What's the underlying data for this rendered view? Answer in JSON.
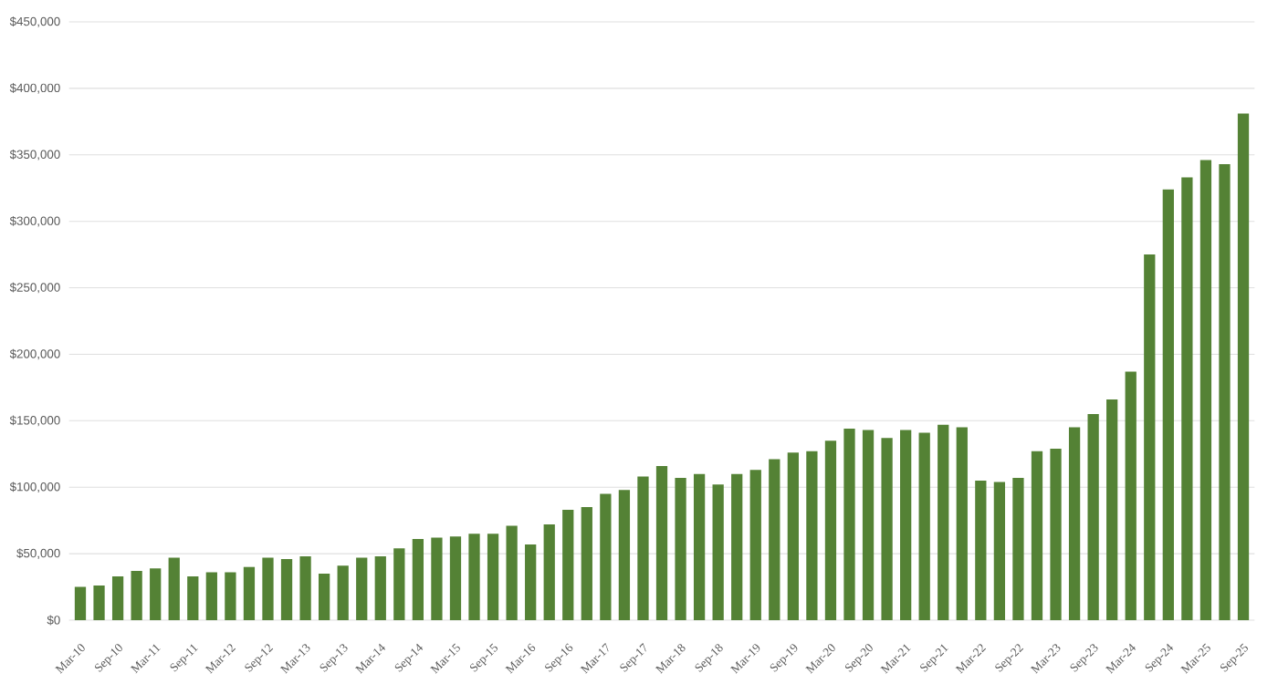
{
  "chart_data": {
    "type": "bar",
    "color": "#548235",
    "grid": "y",
    "categories": [
      "Mar-10",
      null,
      "Sep-10",
      null,
      "Mar-11",
      null,
      "Sep-11",
      null,
      "Mar-12",
      null,
      "Sep-12",
      null,
      "Mar-13",
      null,
      "Sep-13",
      null,
      "Mar-14",
      null,
      "Sep-14",
      null,
      "Mar-15",
      null,
      "Sep-15",
      null,
      "Mar-16",
      null,
      "Sep-16",
      null,
      "Mar-17",
      null,
      "Sep-17",
      null,
      "Mar-18",
      null,
      "Sep-18",
      null,
      "Mar-19",
      null,
      "Sep-19",
      null,
      "Mar-20",
      null,
      "Sep-20",
      null,
      "Mar-21",
      null,
      "Sep-21",
      null,
      "Mar-22",
      null,
      "Sep-22",
      null,
      "Mar-23",
      null,
      "Sep-23",
      null,
      "Mar-24",
      null,
      "Sep-24",
      null,
      "Mar-25",
      null,
      "Sep-25"
    ],
    "values": [
      25000,
      26000,
      33000,
      37000,
      39000,
      47000,
      33000,
      36000,
      36000,
      40000,
      47000,
      46000,
      48000,
      35000,
      41000,
      47000,
      48000,
      54000,
      61000,
      62000,
      63000,
      65000,
      65000,
      71000,
      57000,
      72000,
      83000,
      85000,
      95000,
      98000,
      108000,
      116000,
      107000,
      110000,
      102000,
      110000,
      113000,
      121000,
      126000,
      127000,
      135000,
      144000,
      143000,
      137000,
      143000,
      141000,
      147000,
      145000,
      105000,
      104000,
      107000,
      127000,
      129000,
      145000,
      155000,
      166000,
      187000,
      275000,
      324000,
      333000,
      346000,
      343000,
      381000
    ],
    "ylim": [
      0,
      450000
    ],
    "yticks": [
      {
        "value": 0,
        "label": "$0"
      },
      {
        "value": 50000,
        "label": "$50,000"
      },
      {
        "value": 100000,
        "label": "$100,000"
      },
      {
        "value": 150000,
        "label": "$150,000"
      },
      {
        "value": 200000,
        "label": "$200,000"
      },
      {
        "value": 250000,
        "label": "$250,000"
      },
      {
        "value": 300000,
        "label": "$300,000"
      },
      {
        "value": 350000,
        "label": "$350,000"
      },
      {
        "value": 400000,
        "label": "$400,000"
      },
      {
        "value": 450000,
        "label": "$450,000"
      }
    ]
  }
}
